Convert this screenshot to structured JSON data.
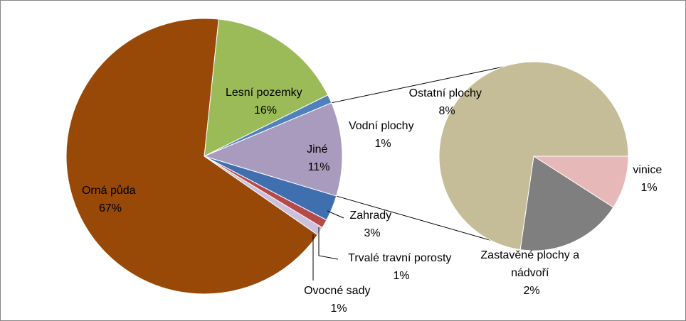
{
  "chart_data": {
    "type": "pie",
    "subtype": "pie-of-pie",
    "title": "",
    "main_pie": {
      "slices": [
        {
          "label": "Lesní pozemky",
          "value": 16,
          "value_label": "16%",
          "color": "#9BBB59"
        },
        {
          "label": "Vodní plochy",
          "value": 1,
          "value_label": "1%",
          "color": "#4F81BD"
        },
        {
          "label": "Jiné",
          "value": 11,
          "value_label": "11%",
          "color": "#A99BBD"
        },
        {
          "label": "Zahrady",
          "value": 3,
          "value_label": "3%",
          "color": "#3F6FAE"
        },
        {
          "label": "Trvalé travní porosty",
          "value": 1,
          "value_label": "1%",
          "color": "#B54A4A"
        },
        {
          "label": "Ovocné sady",
          "value": 1,
          "value_label": "1%",
          "color": "#CCC1DA"
        },
        {
          "label": "Orná půda",
          "value": 67,
          "value_label": "67%",
          "color": "#984807"
        }
      ]
    },
    "secondary_pie": {
      "of_slice": "Jiné",
      "slices": [
        {
          "label": "Ostatní plochy",
          "value": 8,
          "value_label": "8%",
          "color": "#C4BD97"
        },
        {
          "label": "vinice",
          "value": 1,
          "value_label": "1%",
          "color": "#E6B9B8"
        },
        {
          "label": "Zastavěné plochy a nádvoří",
          "value": 2,
          "value_label": "2%",
          "color": "#7F7F7F"
        }
      ]
    },
    "legend": "none"
  }
}
